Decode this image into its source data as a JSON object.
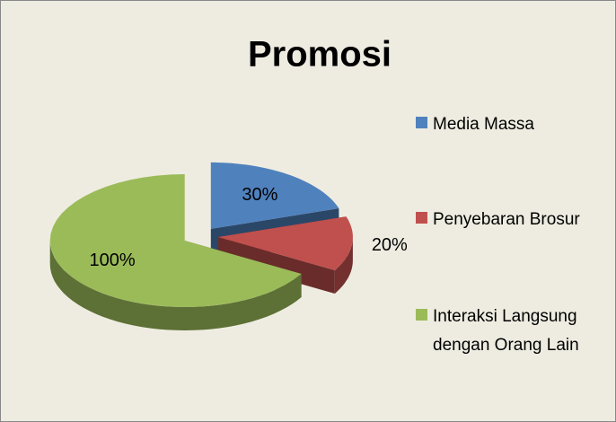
{
  "chart_data": {
    "type": "pie",
    "title": "Promosi",
    "categories": [
      "Media Massa",
      "Penyebaran Brosur",
      "Interaksi Langsung dengan Orang Lain"
    ],
    "values": [
      30,
      20,
      100
    ],
    "value_labels": [
      "30%",
      "20%",
      "100%"
    ],
    "colors": [
      "#4f81bd",
      "#c0504d",
      "#9bbb59"
    ],
    "legend": "right"
  }
}
